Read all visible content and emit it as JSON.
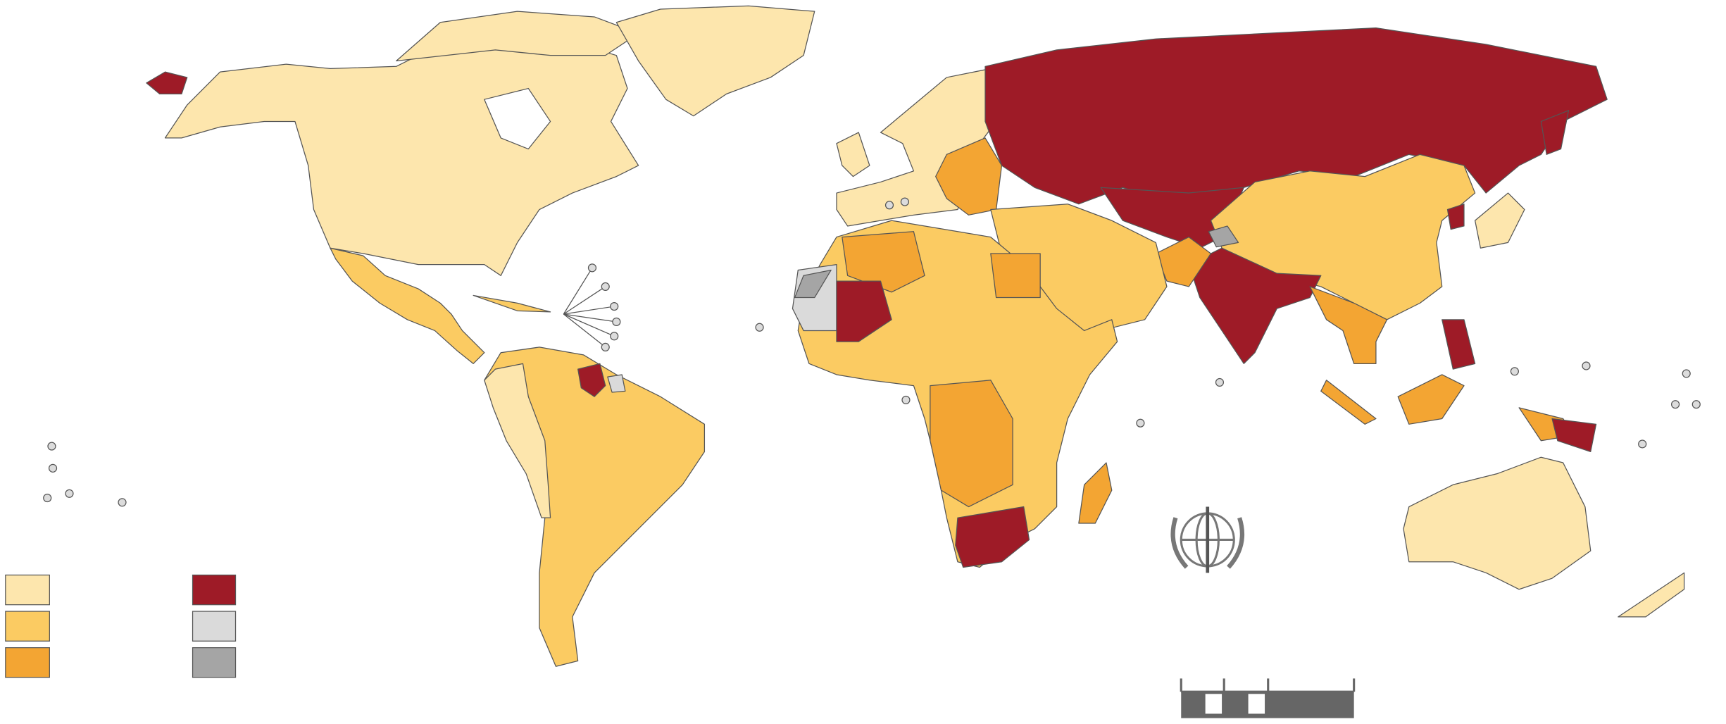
{
  "legend": {
    "colors": [
      "#fde6ad",
      "#fbcb62",
      "#f3a533",
      "#9e1b27",
      "#dadada",
      "#a5a5a5"
    ]
  }
}
